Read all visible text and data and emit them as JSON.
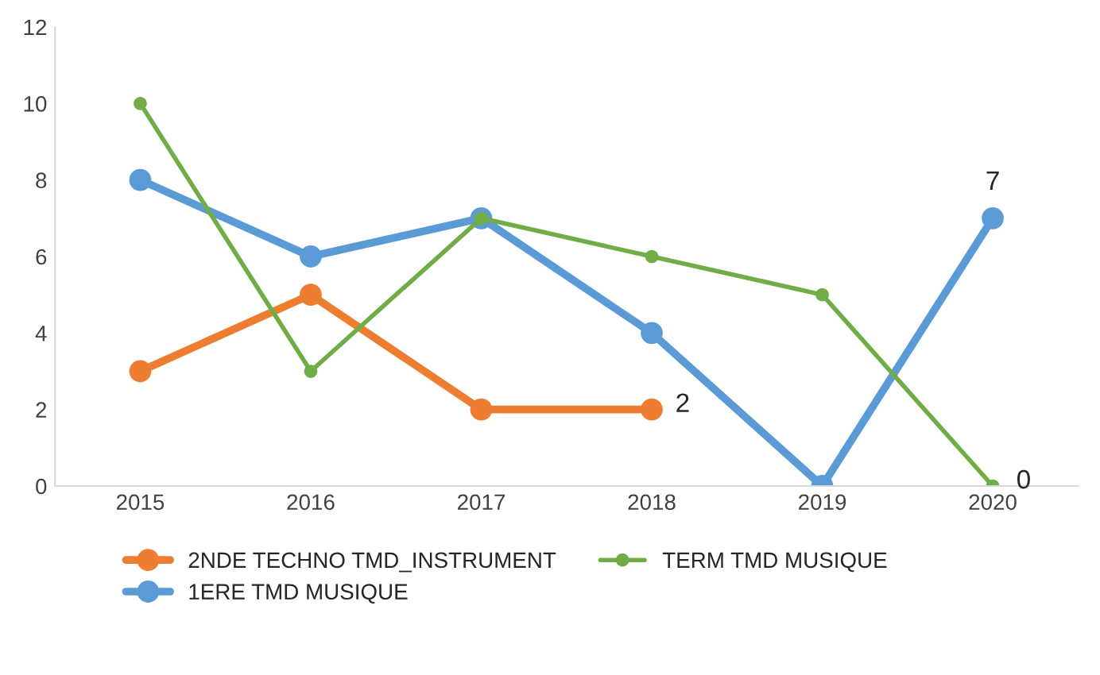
{
  "chart_data": {
    "type": "line",
    "categories": [
      "2015",
      "2016",
      "2017",
      "2018",
      "2019",
      "2020"
    ],
    "series": [
      {
        "name": "2NDE TECHNO TMD_INSTRUMENT",
        "color": "#ed7d31",
        "values": [
          3,
          5,
          2,
          2,
          null,
          null
        ],
        "value_labels": [
          null,
          null,
          null,
          "2",
          null,
          null
        ]
      },
      {
        "name": "1ERE TMD MUSIQUE",
        "color": "#5b9bd5",
        "values": [
          8,
          6,
          7,
          4,
          0,
          7
        ],
        "value_labels": [
          null,
          null,
          null,
          null,
          null,
          "7"
        ]
      },
      {
        "name": "TERM TMD MUSIQUE",
        "color": "#70ad47",
        "values": [
          10,
          3,
          7,
          6,
          5,
          0
        ],
        "value_labels": [
          null,
          null,
          null,
          null,
          null,
          "0"
        ]
      }
    ],
    "ylim": [
      0,
      12
    ],
    "yticks": [
      0,
      2,
      4,
      6,
      8,
      10,
      12
    ],
    "grid": false,
    "legend": "bottom",
    "marker": "circle",
    "line_style": "solid"
  }
}
